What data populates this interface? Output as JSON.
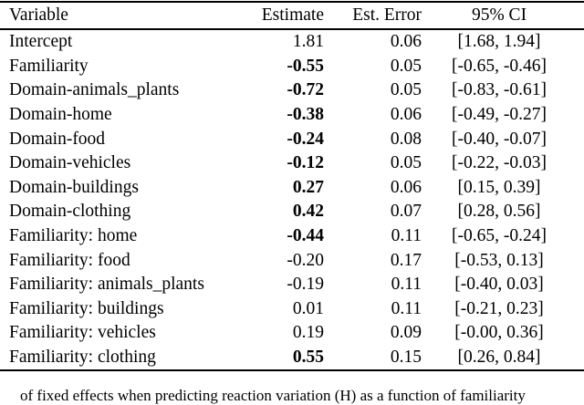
{
  "page": {
    "background_color": "#ffffff",
    "text_color": "#000000"
  },
  "table": {
    "columns": [
      "Variable",
      "Estimate",
      "Est. Error",
      "95% CI"
    ],
    "rows": [
      {
        "variable": "Intercept",
        "estimate": "1.81",
        "estimate_bold": false,
        "est_error": "0.06",
        "ci": "[1.68, 1.94]"
      },
      {
        "variable": "Familiarity",
        "estimate": "-0.55",
        "estimate_bold": true,
        "est_error": "0.05",
        "ci": "[-0.65, -0.46]"
      },
      {
        "variable": "Domain-animals_plants",
        "estimate": "-0.72",
        "estimate_bold": true,
        "est_error": "0.05",
        "ci": "[-0.83, -0.61]"
      },
      {
        "variable": "Domain-home",
        "estimate": "-0.38",
        "estimate_bold": true,
        "est_error": "0.06",
        "ci": "[-0.49, -0.27]"
      },
      {
        "variable": "Domain-food",
        "estimate": "-0.24",
        "estimate_bold": true,
        "est_error": "0.08",
        "ci": "[-0.40, -0.07]"
      },
      {
        "variable": "Domain-vehicles",
        "estimate": "-0.12",
        "estimate_bold": true,
        "est_error": "0.05",
        "ci": "[-0.22, -0.03]"
      },
      {
        "variable": "Domain-buildings",
        "estimate": "0.27",
        "estimate_bold": true,
        "est_error": "0.06",
        "ci": "[0.15, 0.39]"
      },
      {
        "variable": "Domain-clothing",
        "estimate": "0.42",
        "estimate_bold": true,
        "est_error": "0.07",
        "ci": "[0.28, 0.56]"
      },
      {
        "variable": "Familiarity: home",
        "estimate": "-0.44",
        "estimate_bold": true,
        "est_error": "0.11",
        "ci": "[-0.65, -0.24]"
      },
      {
        "variable": "Familiarity: food",
        "estimate": "-0.20",
        "estimate_bold": false,
        "est_error": "0.17",
        "ci": "[-0.53, 0.13]"
      },
      {
        "variable": "Familiarity: animals_plants",
        "estimate": "-0.19",
        "estimate_bold": false,
        "est_error": "0.11",
        "ci": "[-0.40, 0.03]"
      },
      {
        "variable": "Familiarity: buildings",
        "estimate": "0.01",
        "estimate_bold": false,
        "est_error": "0.11",
        "ci": "[-0.21, 0.23]"
      },
      {
        "variable": "Familiarity: vehicles",
        "estimate": "0.19",
        "estimate_bold": false,
        "est_error": "0.09",
        "ci": "[-0.00, 0.36]"
      },
      {
        "variable": "Familiarity: clothing",
        "estimate": "0.55",
        "estimate_bold": true,
        "est_error": "0.15",
        "ci": "[0.26, 0.84]"
      }
    ]
  },
  "caption": {
    "visible_fragment": "of fixed effects when predicting reaction variation (H) as a function of familiarity"
  }
}
